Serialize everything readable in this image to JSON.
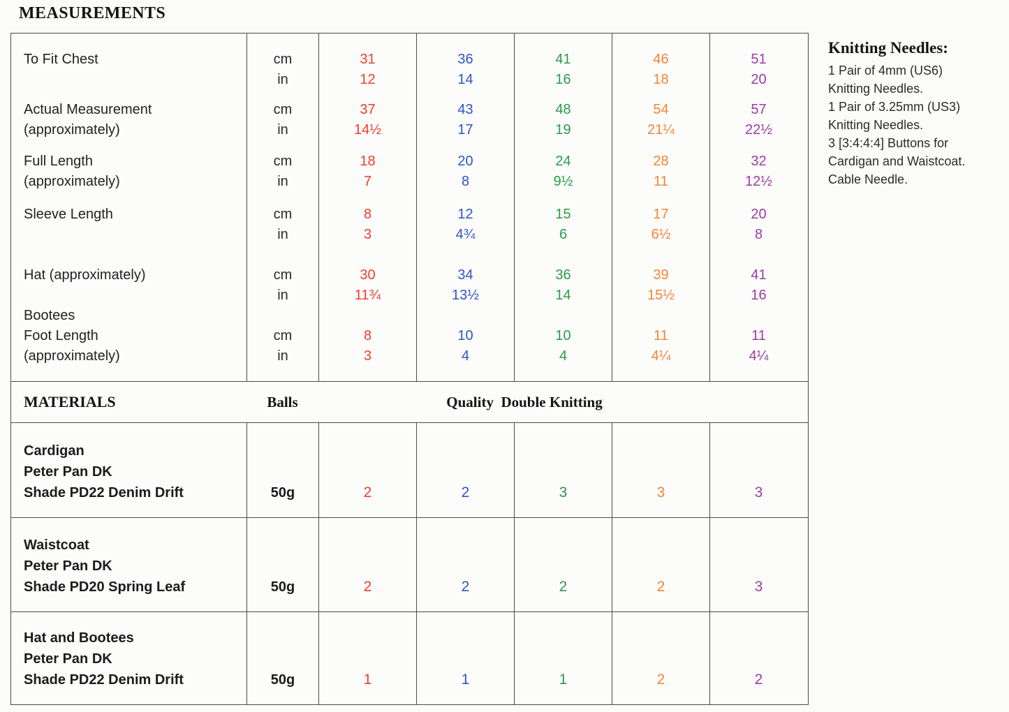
{
  "title": "MEASUREMENTS",
  "colors": {
    "size1": "#ee3e2c",
    "size2": "#2f55c6",
    "size3": "#2b9b49",
    "size4": "#f58434",
    "size5": "#9c3da4"
  },
  "measurements": {
    "rows": [
      {
        "labels": [
          "To Fit Chest"
        ],
        "units": [
          "cm",
          "in"
        ],
        "cm": [
          "31",
          "36",
          "41",
          "46",
          "51"
        ],
        "in": [
          "12",
          "14",
          "16",
          "18",
          "20"
        ]
      },
      {
        "labels": [
          "Actual Measurement",
          "(approximately)"
        ],
        "units": [
          "cm",
          "in"
        ],
        "cm": [
          "37",
          "43",
          "48",
          "54",
          "57"
        ],
        "in": [
          "14½",
          "17",
          "19",
          "21¼",
          "22½"
        ]
      },
      {
        "labels": [
          "Full Length",
          "(approximately)"
        ],
        "units": [
          "cm",
          "in"
        ],
        "cm": [
          "18",
          "20",
          "24",
          "28",
          "32"
        ],
        "in": [
          "7",
          "8",
          "9½",
          "11",
          "12½"
        ]
      },
      {
        "labels": [
          "Sleeve Length"
        ],
        "units": [
          "cm",
          "in"
        ],
        "cm": [
          "8",
          "12",
          "15",
          "17",
          "20"
        ],
        "in": [
          "3",
          "4¾",
          "6",
          "6½",
          "8"
        ]
      },
      {
        "labels": [
          "Hat (approximately)"
        ],
        "units": [
          "cm",
          "in"
        ],
        "cm": [
          "30",
          "34",
          "36",
          "39",
          "41"
        ],
        "in": [
          "11¾",
          "13½",
          "14",
          "15½",
          "16"
        ]
      },
      {
        "labels": [
          "Bootees",
          "Foot Length",
          "(approximately)"
        ],
        "units": [
          "cm",
          "in"
        ],
        "cm": [
          "8",
          "10",
          "10",
          "11",
          "11"
        ],
        "in": [
          "3",
          "4",
          "4",
          "4¼",
          "4¼"
        ]
      }
    ]
  },
  "materials": {
    "title": "MATERIALS",
    "balls_label": "Balls",
    "quality_label": "Quality  Double Knitting",
    "rows": [
      {
        "name": [
          "Cardigan",
          "Peter Pan DK",
          "Shade PD22 Denim Drift"
        ],
        "weight": "50g",
        "counts": [
          "2",
          "2",
          "3",
          "3",
          "3"
        ]
      },
      {
        "name": [
          "Waistcoat",
          "Peter Pan DK",
          "Shade PD20 Spring Leaf"
        ],
        "weight": "50g",
        "counts": [
          "2",
          "2",
          "2",
          "2",
          "3"
        ]
      },
      {
        "name": [
          "Hat and Bootees",
          "Peter Pan DK",
          "Shade PD22 Denim Drift"
        ],
        "weight": "50g",
        "counts": [
          "1",
          "1",
          "1",
          "2",
          "2"
        ]
      }
    ]
  },
  "needles": {
    "title": "Knitting Needles:",
    "lines": [
      "1 Pair of 4mm (US6)",
      "Knitting Needles.",
      "1 Pair of 3.25mm (US3)",
      "Knitting Needles.",
      "3 [3:4:4:4] Buttons for",
      "Cardigan and Waistcoat.",
      "Cable Needle."
    ]
  }
}
